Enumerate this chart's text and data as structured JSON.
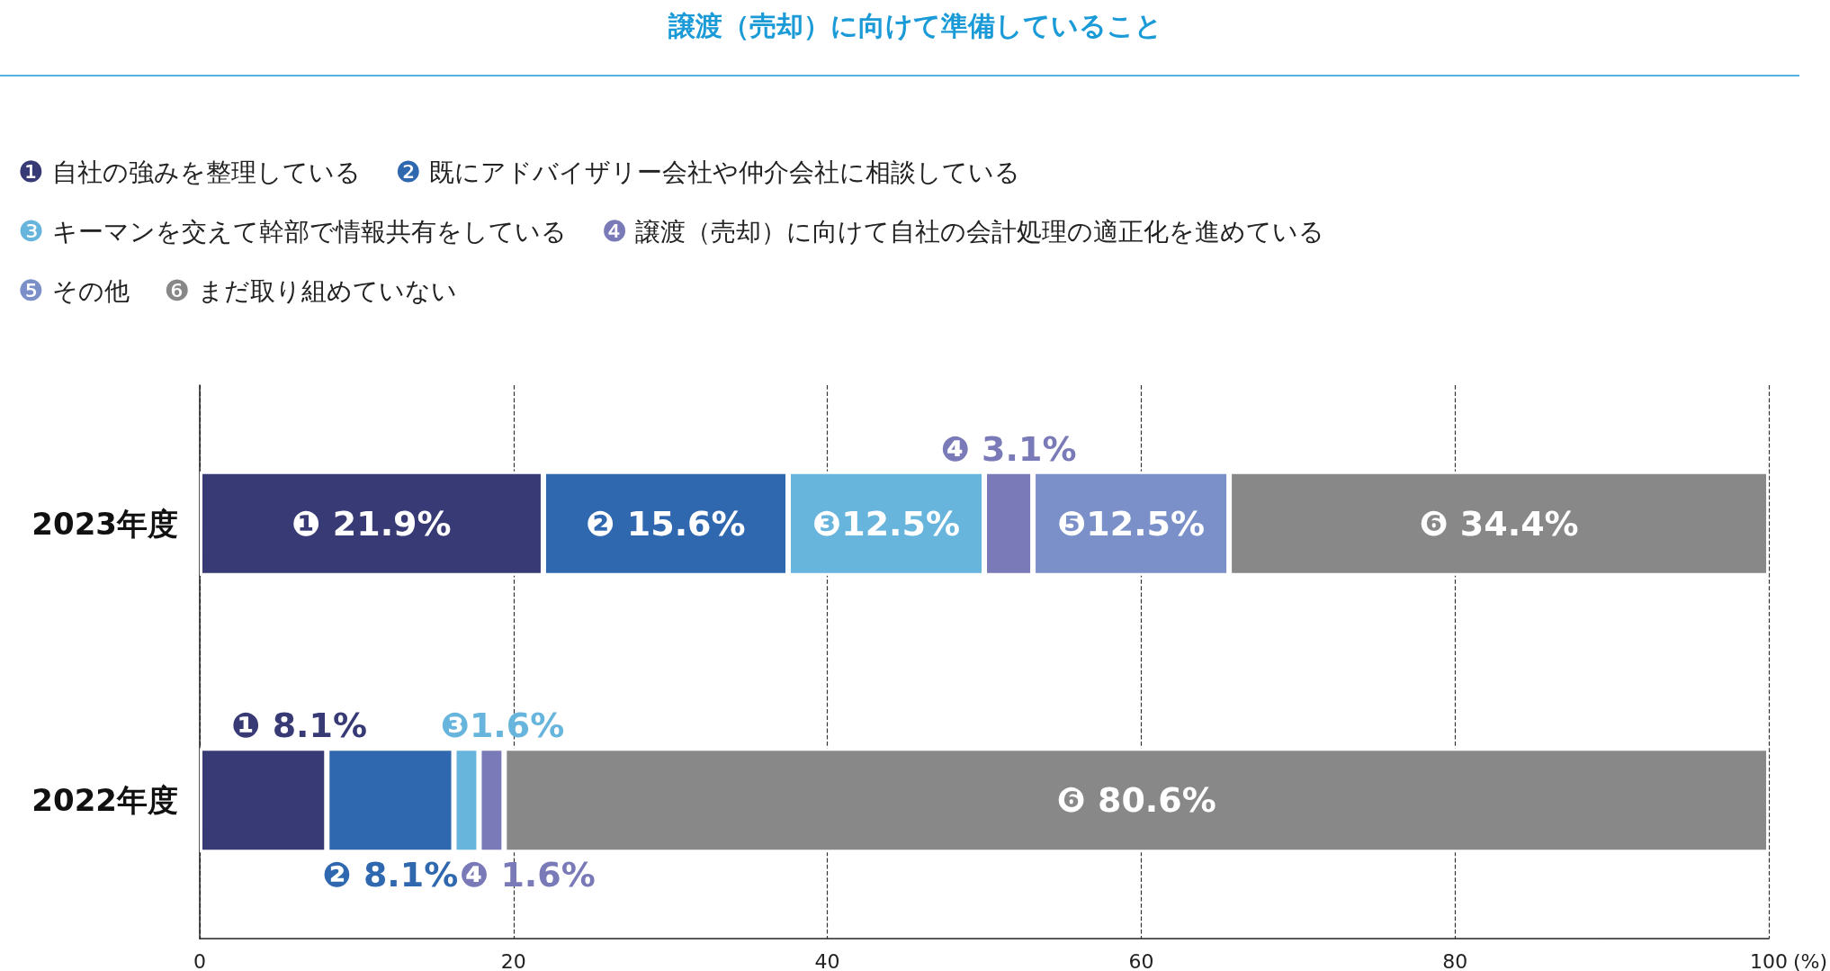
{
  "chart_data": {
    "type": "bar",
    "orientation": "horizontal",
    "stacked": true,
    "title": "譲渡（売却）に向けて準備していること",
    "xlabel": "(%)",
    "categories": [
      "2023年度",
      "2022年度"
    ],
    "series": [
      {
        "name": "❶ 自社の強みを整理している",
        "color": "#373a75",
        "values": [
          21.9,
          8.1
        ],
        "value_labels": [
          "❶ 21.9%",
          "❶ 8.1%"
        ]
      },
      {
        "name": "❷ 既にアドバイザリー会社や仲介会社に相談している",
        "color": "#3068b0",
        "values": [
          15.6,
          8.1
        ],
        "value_labels": [
          "❷ 15.6%",
          "❷ 8.1%"
        ]
      },
      {
        "name": "❸ キーマンを交えて幹部で情報共有をしている",
        "color": "#67b5dc",
        "values": [
          12.5,
          1.6
        ],
        "value_labels": [
          "❸12.5%",
          "❸1.6%"
        ]
      },
      {
        "name": "❹ 譲渡（売却）に向けて自社の会計処理の適正化を進めている",
        "color": "#7a7ab8",
        "values": [
          3.1,
          1.6
        ],
        "value_labels": [
          "❹ 3.1%",
          "❹ 1.6%"
        ]
      },
      {
        "name": "❺ その他",
        "color": "#7b90c8",
        "values": [
          12.5,
          null
        ],
        "value_labels": [
          "❺12.5%",
          null
        ]
      },
      {
        "name": "❻ まだ取り組めていない",
        "color": "#888888",
        "values": [
          34.4,
          80.6
        ],
        "value_labels": [
          "❻ 34.4%",
          "❻ 80.6%"
        ]
      }
    ],
    "xlim": [
      0,
      100
    ],
    "xticks": [
      0,
      20,
      40,
      60,
      80,
      100
    ],
    "grid": "x",
    "legend": "top"
  }
}
